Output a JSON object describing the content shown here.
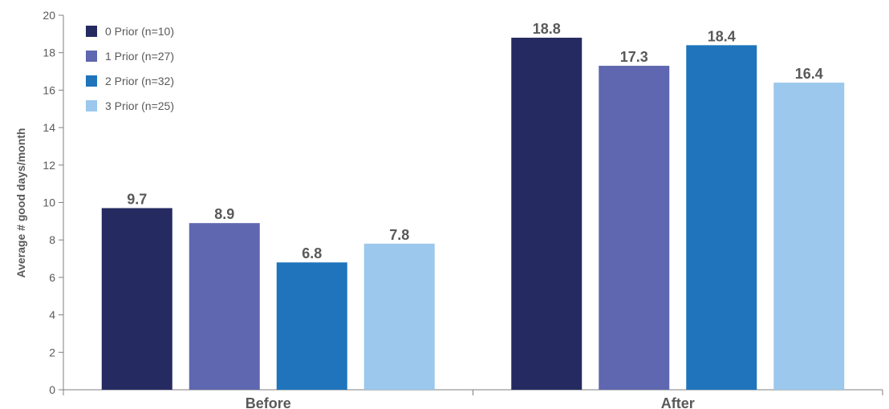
{
  "chart_data": {
    "type": "bar",
    "title": "",
    "xlabel": "",
    "ylabel": "Average # good days/month",
    "ylim": [
      0,
      20
    ],
    "yticks": [
      0,
      2,
      4,
      6,
      8,
      10,
      12,
      14,
      16,
      18,
      20
    ],
    "categories": [
      "Before",
      "After"
    ],
    "legend_position": "top-left",
    "grid": false,
    "series": [
      {
        "name": "0 Prior (n=10)",
        "color": "#252B61",
        "values": [
          9.7,
          18.8
        ]
      },
      {
        "name": "1 Prior (n=27)",
        "color": "#5F67B0",
        "values": [
          8.9,
          17.3
        ]
      },
      {
        "name": "2 Prior (n=32)",
        "color": "#1F74BC",
        "values": [
          6.8,
          18.4
        ]
      },
      {
        "name": "3 Prior (n=25)",
        "color": "#9BC8EC",
        "values": [
          7.8,
          16.4
        ]
      }
    ]
  }
}
